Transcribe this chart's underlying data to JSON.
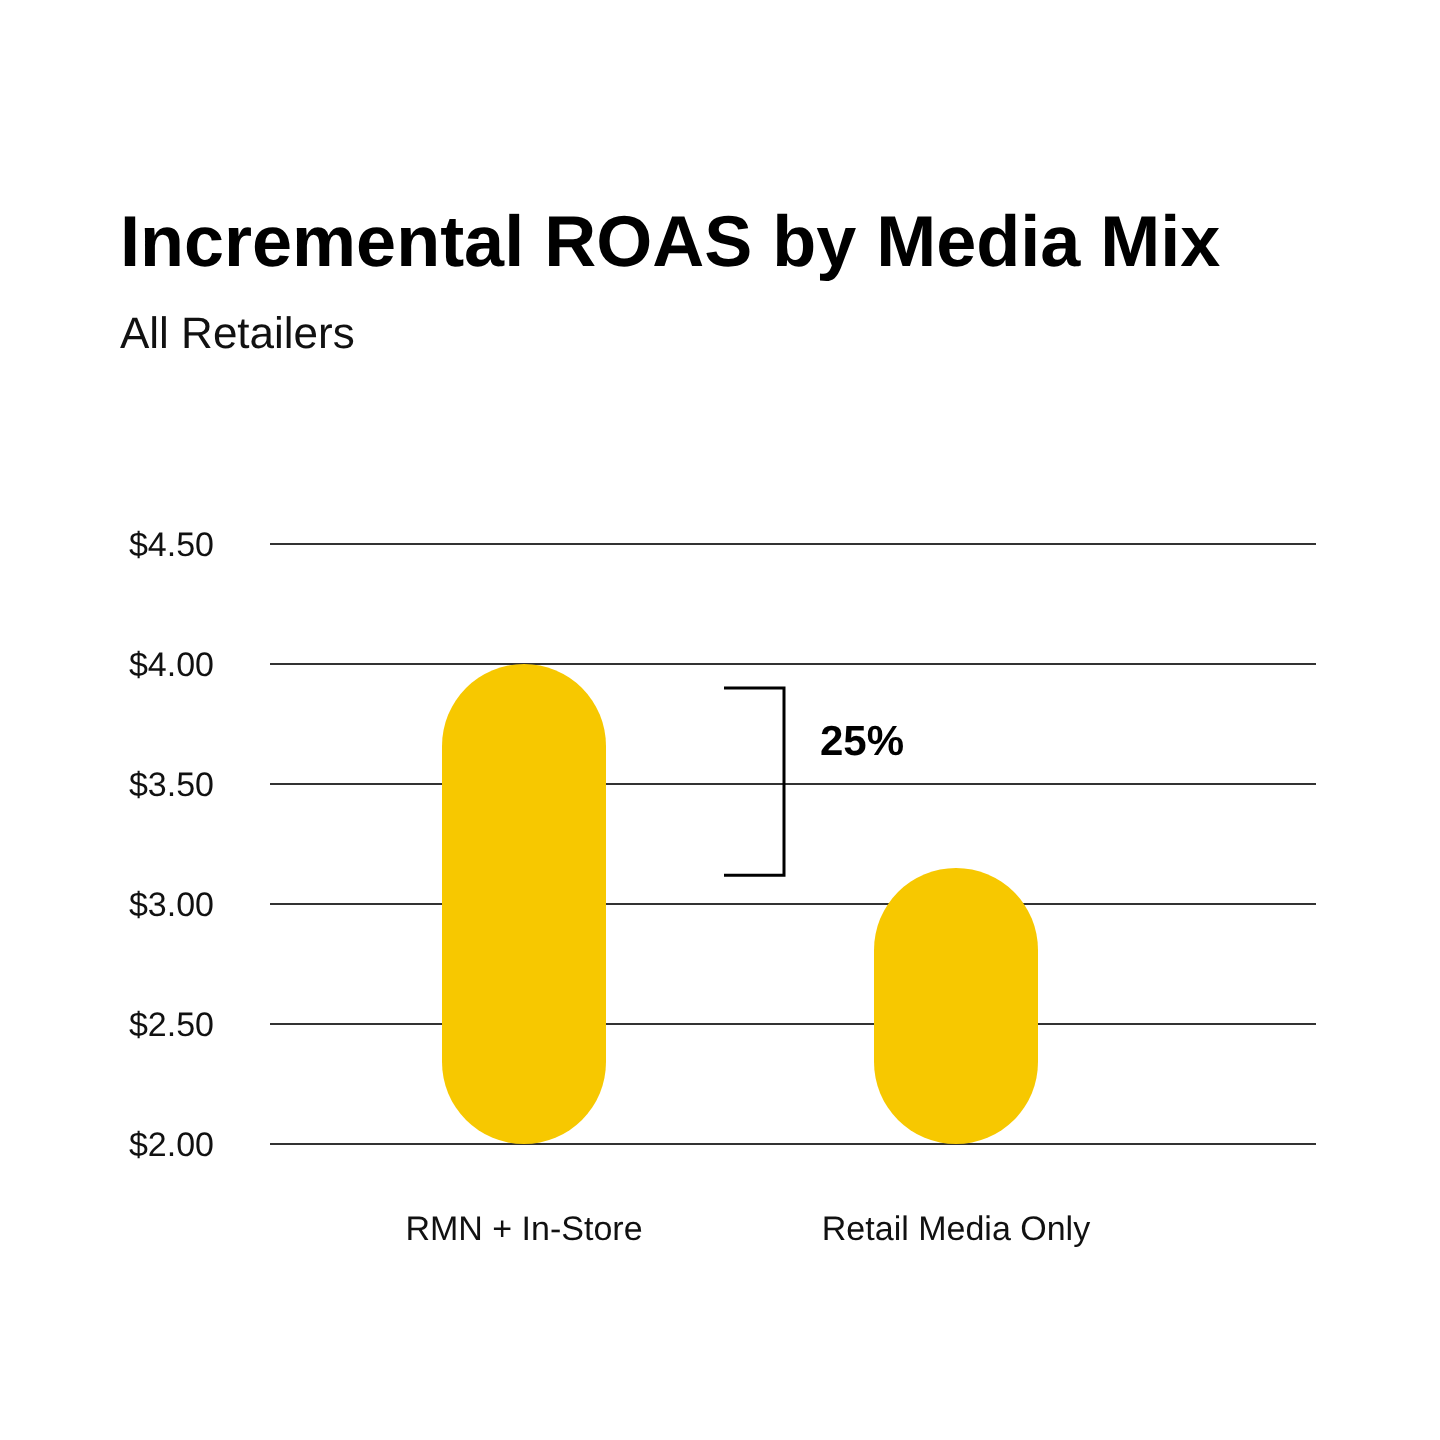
{
  "chart_data": {
    "type": "bar",
    "title": "Incremental ROAS by Media Mix",
    "subtitle": "All Retailers",
    "categories": [
      "RMN + In-Store",
      "Retail Media Only"
    ],
    "values": [
      4.0,
      3.15
    ],
    "color": "#f7c800",
    "ylim": [
      2,
      4.5
    ],
    "yticks": [
      {
        "value": 2,
        "label": "$2.00"
      },
      {
        "value": 2.5,
        "label": "$2.50"
      },
      {
        "value": 3,
        "label": "$3.00"
      },
      {
        "value": 3.5,
        "label": "$3.50"
      },
      {
        "value": 4,
        "label": "$4.00"
      },
      {
        "value": 4.5,
        "label": "$4.50"
      }
    ],
    "grid": "y",
    "annotations": [
      "25%"
    ]
  }
}
